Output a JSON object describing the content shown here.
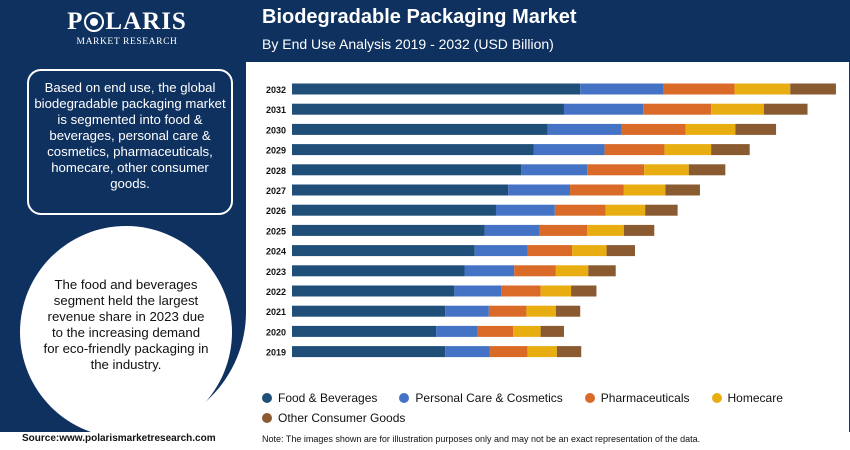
{
  "brand": {
    "name": "POLARIS",
    "tagline": "MARKET RESEARCH"
  },
  "header": {
    "title": "Biodegradable Packaging Market",
    "subtitle": "By End Use Analysis 2019 - 2032 (USD Billion)"
  },
  "panel": {
    "box_text": "Based on end use, the global biodegradable packaging market is segmented into food & beverages, personal care & cosmetics, pharmaceuticals, homecare, other consumer goods.",
    "circle_text": "The food and beverages segment held the largest revenue share in 2023 due to the increasing demand for eco-friendly packaging in the industry."
  },
  "footer": {
    "source": "Source:www.polarismarketresearch.com",
    "note": "Note: The images shown are for illustration purposes only and may not be an exact representation of the data."
  },
  "colors": {
    "header_bg": "#0f3160",
    "food": "#1f4e79",
    "personal": "#4472c4",
    "pharma": "#d96a28",
    "homecare": "#e8ad11",
    "other": "#8a5a30"
  },
  "chart_data": {
    "type": "bar",
    "orientation": "horizontal",
    "stacked": true,
    "categories": [
      "2032",
      "2031",
      "2030",
      "2029",
      "2028",
      "2027",
      "2026",
      "2025",
      "2024",
      "2023",
      "2022",
      "2021",
      "2020",
      "2019"
    ],
    "series": [
      {
        "name": "Food & Beverages",
        "color": "#1f4e79",
        "values": [
          28.4,
          26.8,
          25.2,
          23.8,
          22.6,
          21.3,
          20.1,
          19.0,
          18.0,
          17.0,
          16.0,
          15.1,
          14.2,
          15.1
        ]
      },
      {
        "name": "Personal Care & Cosmetics",
        "color": "#4472c4",
        "values": [
          8.2,
          7.8,
          7.3,
          7.0,
          6.5,
          6.1,
          5.8,
          5.4,
          5.2,
          4.9,
          4.6,
          4.3,
          4.1,
          4.4
        ]
      },
      {
        "name": "Pharmaceuticals",
        "color": "#d96a28",
        "values": [
          7.0,
          6.7,
          6.3,
          5.9,
          5.6,
          5.3,
          5.0,
          4.7,
          4.4,
          4.1,
          3.9,
          3.7,
          3.5,
          3.7
        ]
      },
      {
        "name": "Homecare",
        "color": "#e8ad11",
        "values": [
          5.5,
          5.2,
          4.9,
          4.6,
          4.4,
          4.1,
          3.9,
          3.6,
          3.4,
          3.2,
          3.0,
          2.9,
          2.7,
          2.9
        ]
      },
      {
        "name": "Other Consumer Goods",
        "color": "#8a5a30",
        "values": [
          4.5,
          4.3,
          4.0,
          3.8,
          3.6,
          3.4,
          3.2,
          3.0,
          2.8,
          2.7,
          2.5,
          2.4,
          2.3,
          2.4
        ]
      }
    ],
    "xlim": [
      0,
      54
    ],
    "grid": false,
    "legend_position": "bottom"
  }
}
